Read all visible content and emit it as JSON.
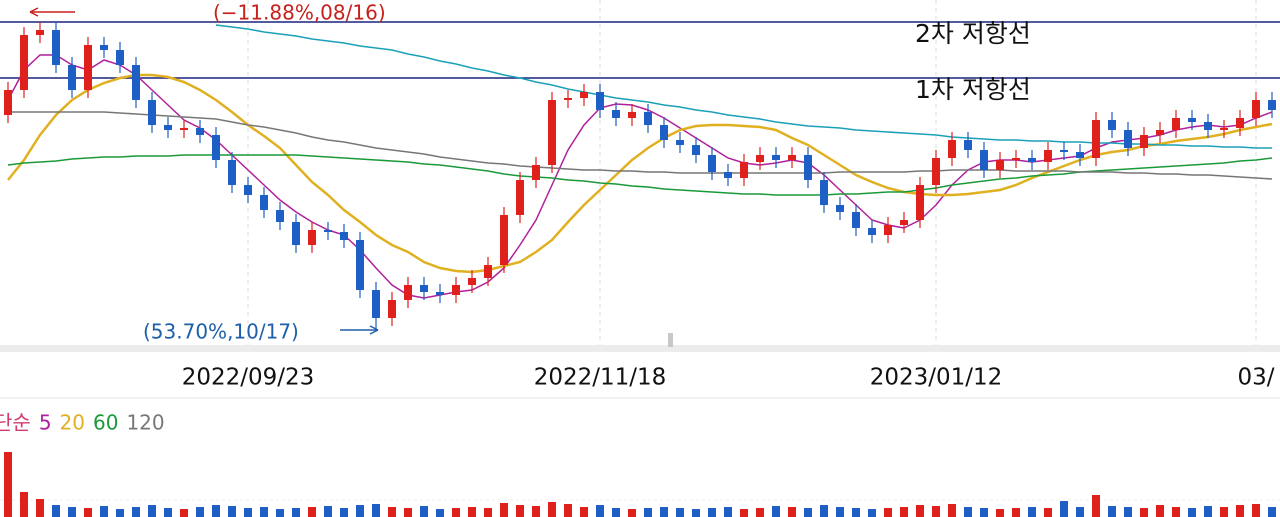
{
  "chart_data": [
    {
      "type": "candlestick",
      "categories": [
        null,
        null,
        null,
        null,
        null,
        null,
        null,
        null,
        null,
        null,
        null,
        null,
        null,
        null,
        null,
        "2022/09/23",
        null,
        null,
        null,
        null,
        null,
        null,
        null,
        null,
        null,
        null,
        null,
        null,
        null,
        null,
        null,
        null,
        null,
        null,
        null,
        null,
        null,
        "2022/11/18",
        null,
        null,
        null,
        null,
        null,
        null,
        null,
        null,
        null,
        null,
        null,
        null,
        null,
        null,
        null,
        null,
        null,
        null,
        null,
        null,
        "2023/01/12",
        null,
        null,
        null,
        null,
        null,
        null,
        null,
        null,
        null,
        null,
        null,
        null,
        null,
        null,
        null,
        null,
        null,
        null,
        null,
        "03/",
        null
      ],
      "open": [
        230,
        255,
        310,
        315,
        280,
        255,
        300,
        295,
        280,
        245,
        220,
        215,
        217,
        210,
        185,
        160,
        150,
        135,
        123,
        100,
        115,
        113,
        105,
        55,
        27,
        45,
        60,
        53,
        50,
        60,
        67,
        80,
        130,
        165,
        180,
        245,
        247,
        253,
        235,
        227,
        233,
        220,
        205,
        200,
        190,
        173,
        167,
        183,
        190,
        185,
        190,
        165,
        140,
        133,
        117,
        110,
        120,
        125,
        160,
        187,
        205,
        195,
        175,
        185,
        187,
        183,
        195,
        193,
        187,
        225,
        215,
        197,
        210,
        215,
        227,
        223,
        215,
        217,
        227,
        245
      ],
      "high": [
        263,
        318,
        323,
        323,
        288,
        308,
        308,
        303,
        288,
        253,
        228,
        225,
        225,
        218,
        193,
        168,
        158,
        143,
        131,
        123,
        123,
        121,
        113,
        63,
        53,
        68,
        68,
        61,
        68,
        75,
        88,
        138,
        173,
        188,
        253,
        255,
        261,
        261,
        243,
        241,
        241,
        228,
        213,
        208,
        198,
        181,
        191,
        198,
        198,
        198,
        198,
        173,
        148,
        141,
        125,
        128,
        133,
        168,
        195,
        213,
        213,
        203,
        193,
        195,
        195,
        203,
        203,
        201,
        233,
        233,
        223,
        218,
        223,
        235,
        235,
        231,
        225,
        235,
        253,
        253
      ],
      "low": [
        222,
        247,
        302,
        272,
        247,
        247,
        287,
        272,
        237,
        212,
        207,
        207,
        202,
        177,
        152,
        142,
        127,
        115,
        92,
        92,
        105,
        97,
        47,
        15,
        19,
        37,
        45,
        42,
        42,
        52,
        59,
        72,
        122,
        157,
        172,
        237,
        239,
        227,
        219,
        219,
        212,
        197,
        192,
        182,
        165,
        159,
        159,
        175,
        177,
        177,
        157,
        132,
        125,
        109,
        102,
        102,
        112,
        117,
        152,
        179,
        187,
        167,
        167,
        177,
        175,
        175,
        185,
        179,
        179,
        207,
        189,
        189,
        202,
        207,
        215,
        207,
        207,
        209,
        219,
        227
      ],
      "close": [
        255,
        310,
        315,
        280,
        255,
        300,
        295,
        280,
        245,
        220,
        215,
        217,
        210,
        185,
        160,
        150,
        135,
        123,
        100,
        115,
        113,
        105,
        55,
        27,
        45,
        60,
        53,
        50,
        60,
        67,
        80,
        130,
        165,
        180,
        245,
        247,
        253,
        235,
        227,
        233,
        220,
        205,
        200,
        190,
        173,
        167,
        183,
        190,
        185,
        190,
        165,
        140,
        133,
        117,
        110,
        120,
        125,
        160,
        187,
        205,
        195,
        175,
        185,
        187,
        183,
        195,
        193,
        187,
        225,
        215,
        197,
        210,
        215,
        227,
        223,
        215,
        217,
        227,
        245,
        235
      ],
      "up_color": "#e0201c",
      "down_color": "#1d5fc4",
      "ylim": [
        0,
        345
      ],
      "legend_title": "단순",
      "legend_title_color": "#d23a6a",
      "series": [
        {
          "name": "5",
          "color": "#b0209c",
          "values": [
            245,
            275,
            290,
            290,
            280,
            275,
            285,
            280,
            270,
            255,
            240,
            225,
            217,
            205,
            190,
            175,
            160,
            145,
            133,
            123,
            115,
            110,
            95,
            77,
            60,
            50,
            47,
            50,
            53,
            55,
            63,
            77,
            100,
            125,
            160,
            195,
            220,
            237,
            241,
            240,
            235,
            227,
            217,
            207,
            197,
            187,
            182,
            180,
            182,
            185,
            182,
            170,
            155,
            140,
            125,
            120,
            117,
            125,
            140,
            160,
            175,
            183,
            185,
            185,
            183,
            185,
            187,
            189,
            197,
            203,
            205,
            207,
            210,
            215,
            218,
            220,
            218,
            220,
            227,
            233
          ]
        },
        {
          "name": "20",
          "color": "#e0b020",
          "values": [
            165,
            185,
            210,
            230,
            245,
            255,
            262,
            267,
            270,
            270,
            268,
            263,
            255,
            245,
            233,
            220,
            209,
            197,
            180,
            163,
            150,
            135,
            123,
            110,
            100,
            93,
            83,
            77,
            74,
            73,
            75,
            79,
            83,
            93,
            105,
            123,
            140,
            155,
            170,
            185,
            197,
            207,
            215,
            219,
            220,
            220,
            219,
            218,
            215,
            207,
            200,
            190,
            180,
            170,
            163,
            157,
            153,
            151,
            150,
            150,
            151,
            153,
            155,
            160,
            167,
            173,
            179,
            185,
            190,
            193,
            195,
            199,
            201,
            204,
            206,
            208,
            211,
            215,
            218,
            221
          ]
        },
        {
          "name": "60",
          "color": "#1a9a3a",
          "values": [
            180,
            182,
            183,
            184,
            186,
            187,
            188,
            188,
            189,
            189,
            189,
            190,
            190,
            190,
            190,
            190,
            190,
            190,
            190,
            189,
            188,
            187,
            186,
            185,
            184,
            183,
            181,
            180,
            178,
            176,
            174,
            171,
            169,
            168,
            167,
            165,
            164,
            162,
            161,
            159,
            158,
            156,
            155,
            154,
            153,
            152,
            151,
            151,
            150,
            150,
            150,
            150,
            151,
            151,
            152,
            153,
            153,
            155,
            157,
            160,
            162,
            164,
            166,
            167,
            169,
            170,
            171,
            173,
            174,
            175,
            176,
            177,
            178,
            179,
            180,
            181,
            182,
            184,
            185,
            187
          ]
        },
        {
          "name": "120",
          "color": "#777777",
          "values": [
            233,
            233,
            233,
            233,
            233,
            233,
            233,
            232,
            231,
            230,
            229,
            228,
            227,
            226,
            223,
            220,
            218,
            215,
            212,
            208,
            205,
            203,
            200,
            197,
            195,
            193,
            191,
            188,
            186,
            184,
            182,
            181,
            179,
            178,
            177,
            176,
            175,
            175,
            174,
            174,
            173,
            173,
            172,
            172,
            172,
            172,
            172,
            172,
            172,
            172,
            172,
            172,
            173,
            173,
            173,
            173,
            173,
            174,
            174,
            175,
            175,
            175,
            175,
            174,
            174,
            174,
            174,
            173,
            173,
            173,
            172,
            172,
            171,
            171,
            170,
            170,
            169,
            168,
            167,
            166
          ]
        },
        {
          "color": "#1aa0b8",
          "values": [
            null,
            null,
            null,
            null,
            null,
            null,
            null,
            null,
            null,
            null,
            null,
            null,
            null,
            320,
            318,
            316,
            313,
            311,
            309,
            306,
            304,
            302,
            299,
            297,
            295,
            291,
            288,
            284,
            281,
            277,
            274,
            270,
            267,
            263,
            260,
            256,
            253,
            250,
            247,
            245,
            243,
            240,
            238,
            235,
            233,
            230,
            228,
            226,
            223,
            221,
            219,
            218,
            217,
            215,
            214,
            213,
            212,
            211,
            210,
            208,
            207,
            206,
            205,
            205,
            204,
            204,
            203,
            203,
            202,
            202,
            201,
            201,
            200,
            200,
            199,
            199,
            198,
            198,
            197,
            197
          ]
        }
      ],
      "hlines": [
        {
          "value": 323,
          "label": "2차 저항선"
        },
        {
          "value": 267,
          "label": "1차 저항선"
        }
      ],
      "hline_color": "#1a237e",
      "annotations": [
        {
          "text": "(−11.88%,08/16)",
          "color": "#c8201c"
        },
        {
          "text": "(53.70%,10/17)",
          "color": "#1d5fa8"
        }
      ],
      "grid": true
    },
    {
      "type": "bar",
      "values": [
        65,
        25,
        18,
        12,
        10,
        9,
        11,
        8,
        10,
        12,
        9,
        8,
        10,
        12,
        11,
        9,
        10,
        8,
        9,
        10,
        11,
        9,
        12,
        13,
        10,
        9,
        11,
        8,
        9,
        10,
        9,
        14,
        12,
        11,
        15,
        13,
        10,
        12,
        9,
        8,
        9,
        10,
        9,
        8,
        9,
        10,
        8,
        9,
        11,
        10,
        9,
        12,
        10,
        9,
        8,
        9,
        10,
        12,
        11,
        13,
        10,
        9,
        8,
        9,
        10,
        9,
        16,
        10,
        22,
        11,
        10,
        9,
        12,
        10,
        9,
        11,
        10,
        12,
        13,
        10
      ],
      "ylim": [
        0,
        72
      ]
    }
  ]
}
